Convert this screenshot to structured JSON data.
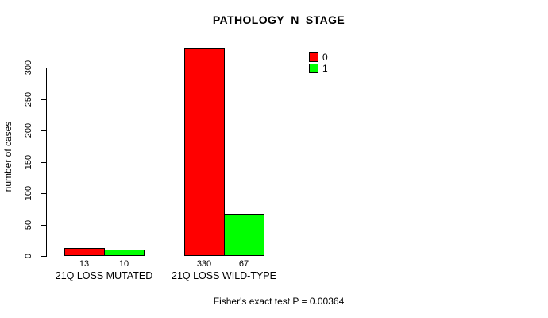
{
  "chart_data": {
    "type": "bar",
    "title": "PATHOLOGY_N_STAGE",
    "xlabel": "",
    "ylabel": "number of cases",
    "categories": [
      "21Q LOSS MUTATED",
      "21Q LOSS WILD-TYPE"
    ],
    "series": [
      {
        "name": "0",
        "color": "#ff0000",
        "values": [
          13,
          330
        ]
      },
      {
        "name": "1",
        "color": "#00ff00",
        "values": [
          10,
          67
        ]
      }
    ],
    "bar_value_labels": [
      [
        "13",
        "330"
      ],
      [
        "10",
        "67"
      ]
    ],
    "yticks": [
      0,
      50,
      100,
      150,
      200,
      250,
      300
    ],
    "ylim": [
      0,
      330
    ],
    "grid": false,
    "legend_position": "top-right",
    "annotation": "Fisher's exact test P = 0.00364"
  }
}
